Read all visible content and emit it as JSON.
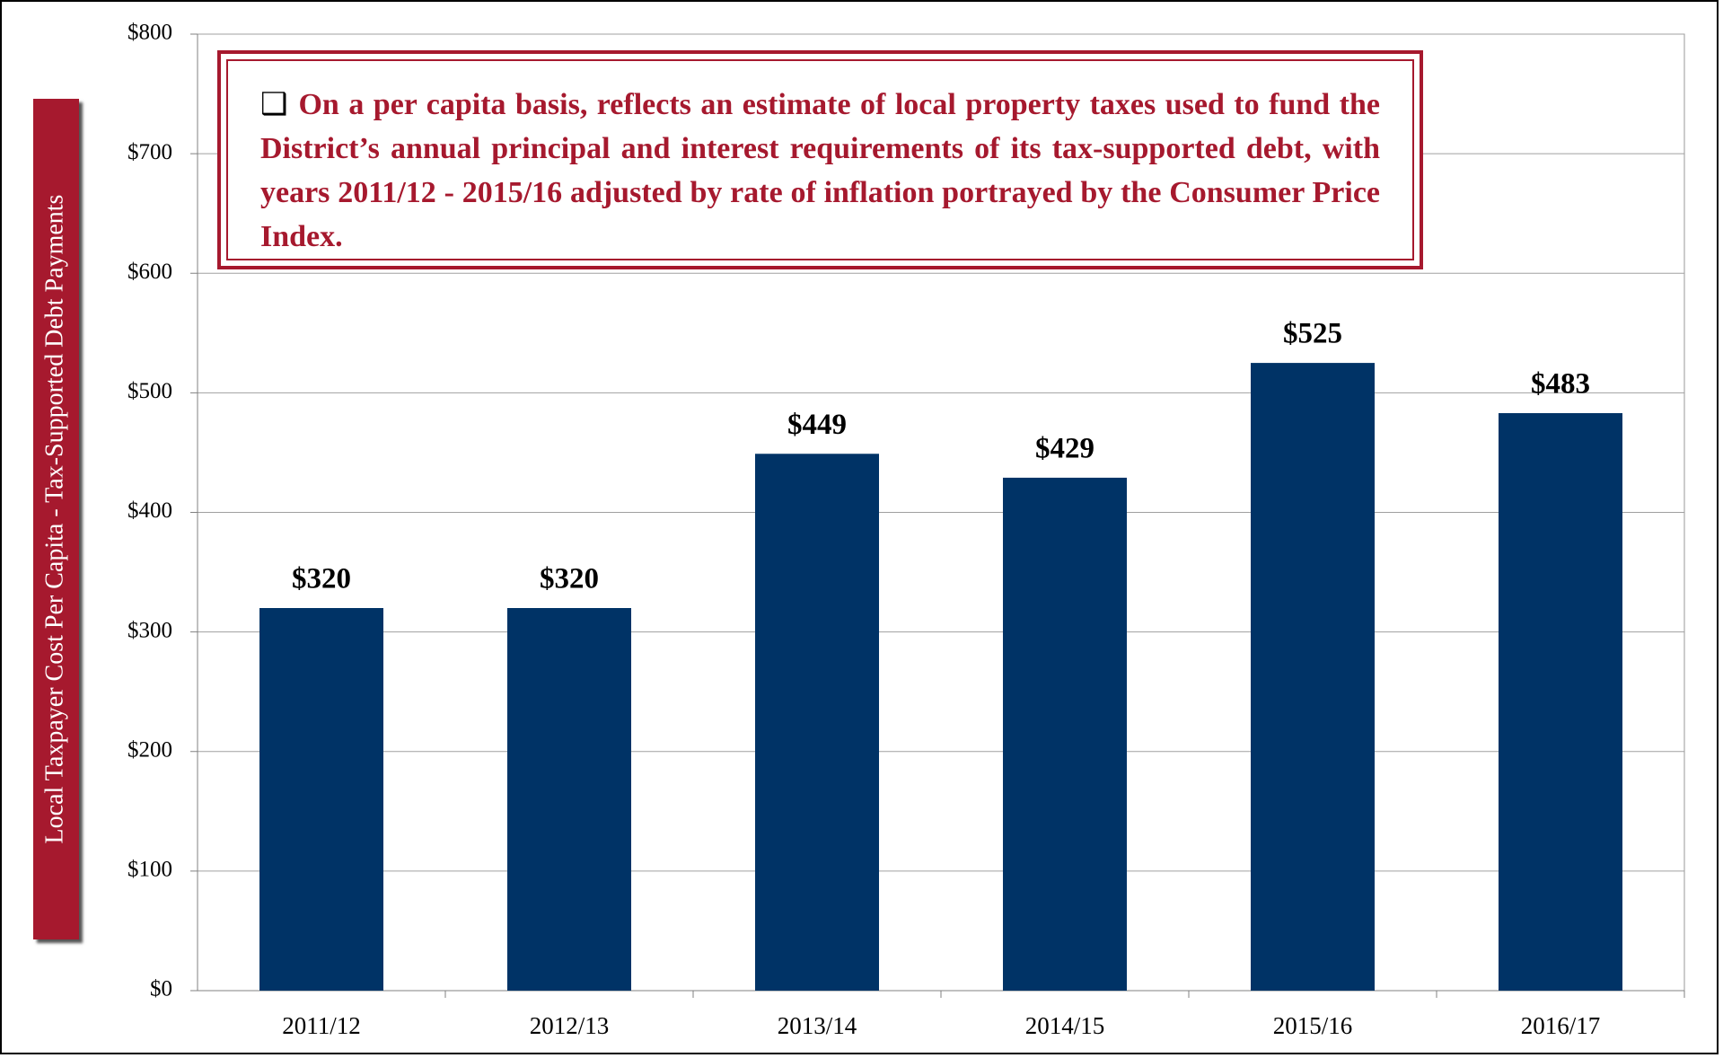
{
  "chart_data": {
    "type": "bar",
    "y_axis_label": "Local Taxpayer Cost Per Capita - Tax-Supported Debt Payments",
    "annotation": {
      "bullet": "❑",
      "text": "On a per capita basis, reflects an estimate of local property taxes used to fund the District’s annual principal and interest requirements of its tax-supported debt, with years 2011/12 - 2015/16 adjusted by rate of inflation portrayed by the Consumer Price Index."
    },
    "categories": [
      "2011/12",
      "2012/13",
      "2013/14",
      "2014/15",
      "2015/16",
      "2016/17"
    ],
    "values": [
      320,
      320,
      449,
      429,
      525,
      483
    ],
    "value_labels": [
      "$320",
      "$320",
      "$449",
      "$429",
      "$525",
      "$483"
    ],
    "color": "#003366",
    "ylim": [
      0,
      800
    ],
    "yticks": [
      {
        "value": 0,
        "label": "$0"
      },
      {
        "value": 100,
        "label": "$100"
      },
      {
        "value": 200,
        "label": "$200"
      },
      {
        "value": 300,
        "label": "$300"
      },
      {
        "value": 400,
        "label": "$400"
      },
      {
        "value": 500,
        "label": "$500"
      },
      {
        "value": 600,
        "label": "$600"
      },
      {
        "value": 700,
        "label": "$700"
      },
      {
        "value": 800,
        "label": "$800"
      }
    ],
    "grid": true
  }
}
